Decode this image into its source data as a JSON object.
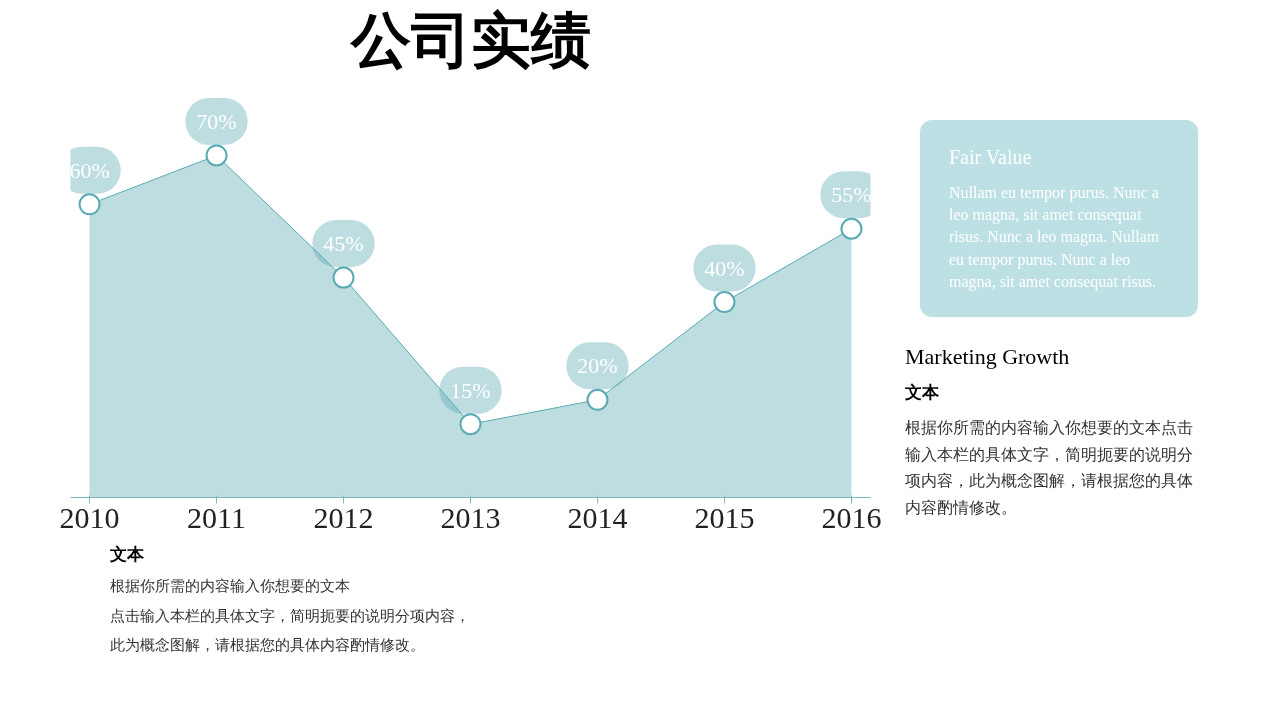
{
  "chart_data": {
    "type": "area",
    "title": "公司实绩",
    "categories": [
      "2010",
      "2011",
      "2012",
      "2013",
      "2014",
      "2015",
      "2016"
    ],
    "series": [
      {
        "color": "#5aaab3",
        "values": [
          60,
          70,
          45,
          15,
          20,
          40,
          55
        ],
        "value_labels": [
          "60%",
          "70%",
          "45%",
          "15%",
          "20%",
          "40%",
          "55%"
        ]
      }
    ],
    "tick_labels": "x",
    "grid": false,
    "marker": "circle",
    "annotations": [
      "Fair Value",
      "Nullam eu tempor purus. Nunc a leo magna, sit amet consequat risus. Nunc a leo magna. Nullam eu tempor purus. Nunc a leo magna, sit amet consequat risus.",
      "Marketing Growth",
      "文本",
      "根据你所需的内容输入你想要的文本点击输入本栏的具体文字，简明扼要的说明分项内容，此为概念图解，请根据您的具体内容酌情修改。",
      "文本",
      "根据你所需的内容输入你想要的文本",
      "点击输入本栏的具体文字，简明扼要的说明分项内容，",
      "此为概念图解，请根据您的具体内容酌情修改。"
    ]
  }
}
